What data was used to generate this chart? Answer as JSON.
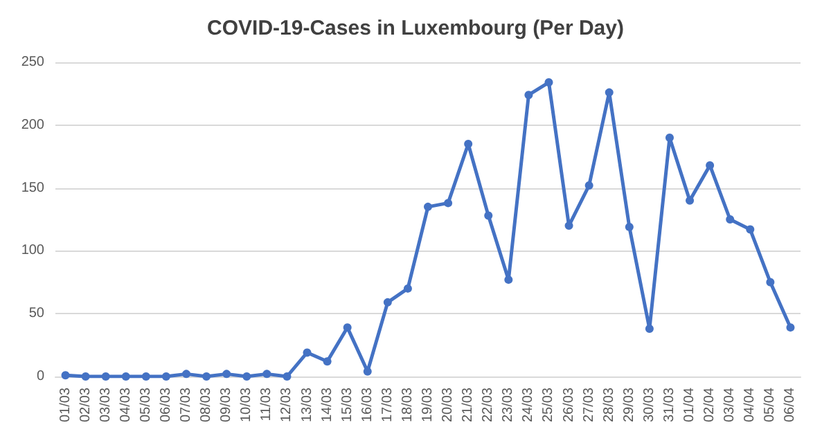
{
  "chart_data": {
    "type": "line",
    "title": "COVID-19-Cases in Luxembourg (Per Day)",
    "categories": [
      "01/03",
      "02/03",
      "03/03",
      "04/03",
      "05/03",
      "06/03",
      "07/03",
      "08/03",
      "09/03",
      "10/03",
      "11/03",
      "12/03",
      "13/03",
      "14/03",
      "15/03",
      "16/03",
      "17/03",
      "18/03",
      "19/03",
      "20/03",
      "21/03",
      "22/03",
      "23/03",
      "24/03",
      "25/03",
      "26/03",
      "27/03",
      "28/03",
      "29/03",
      "30/03",
      "31/03",
      "01/04",
      "02/04",
      "03/04",
      "04/04",
      "05/04",
      "06/04"
    ],
    "series": [
      {
        "color": "#4472c4",
        "values": [
          1,
          0,
          0,
          0,
          0,
          0,
          2,
          0,
          2,
          0,
          2,
          0,
          19,
          12,
          39,
          4,
          59,
          70,
          135,
          138,
          185,
          128,
          77,
          224,
          234,
          120,
          152,
          226,
          119,
          38,
          190,
          140,
          168,
          125,
          117,
          75,
          39
        ]
      }
    ],
    "ylim": [
      0,
      250
    ],
    "yticks": [
      0,
      50,
      100,
      150,
      200,
      250
    ],
    "grid": "y",
    "marker": "circle",
    "line_style": "solid"
  }
}
